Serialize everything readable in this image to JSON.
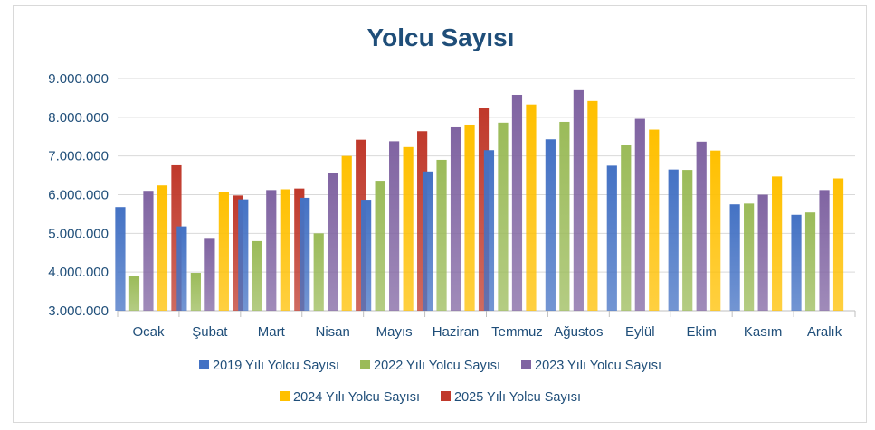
{
  "chart_data": {
    "type": "bar",
    "title": "Yolcu Sayısı",
    "xlabel": "",
    "ylabel": "",
    "ylim": [
      3000000,
      9000000
    ],
    "y_ticks": [
      3000000,
      4000000,
      5000000,
      6000000,
      7000000,
      8000000,
      9000000
    ],
    "y_tick_labels": [
      "3.000.000",
      "4.000.000",
      "5.000.000",
      "6.000.000",
      "7.000.000",
      "8.000.000",
      "9.000.000"
    ],
    "grid": true,
    "legend_position": "bottom",
    "categories": [
      "Ocak",
      "Şubat",
      "Mart",
      "Nisan",
      "Mayıs",
      "Haziran",
      "Temmuz",
      "Ağustos",
      "Eylül",
      "Ekim",
      "Kasım",
      "Aralık"
    ],
    "series": [
      {
        "name": "2019 Yılı Yolcu Sayısı",
        "color": "#4472c4",
        "values": [
          5680000,
          5180000,
          5880000,
          5920000,
          5870000,
          6600000,
          7150000,
          7430000,
          6750000,
          6650000,
          5750000,
          5480000
        ]
      },
      {
        "name": "2022 Yılı Yolcu Sayısı",
        "color": "#9bbb59",
        "values": [
          3900000,
          3980000,
          4800000,
          5000000,
          6360000,
          6900000,
          7860000,
          7880000,
          7280000,
          6640000,
          5770000,
          5540000
        ]
      },
      {
        "name": "2023 Yılı Yolcu Sayısı",
        "color": "#8064a2",
        "values": [
          6100000,
          4860000,
          6120000,
          6560000,
          7380000,
          7740000,
          8580000,
          8700000,
          7960000,
          7370000,
          6000000,
          6120000
        ]
      },
      {
        "name": "2024 Yılı Yolcu Sayısı",
        "color": "#ffc000",
        "values": [
          6240000,
          6070000,
          6140000,
          7000000,
          7230000,
          7810000,
          8330000,
          8420000,
          7680000,
          7140000,
          6470000,
          6420000
        ]
      },
      {
        "name": "2025 Yılı Yolcu Sayısı",
        "color": "#c0392b",
        "values": [
          6760000,
          5980000,
          6160000,
          7420000,
          7640000,
          8240000,
          null,
          null,
          null,
          null,
          null,
          null
        ]
      }
    ]
  }
}
